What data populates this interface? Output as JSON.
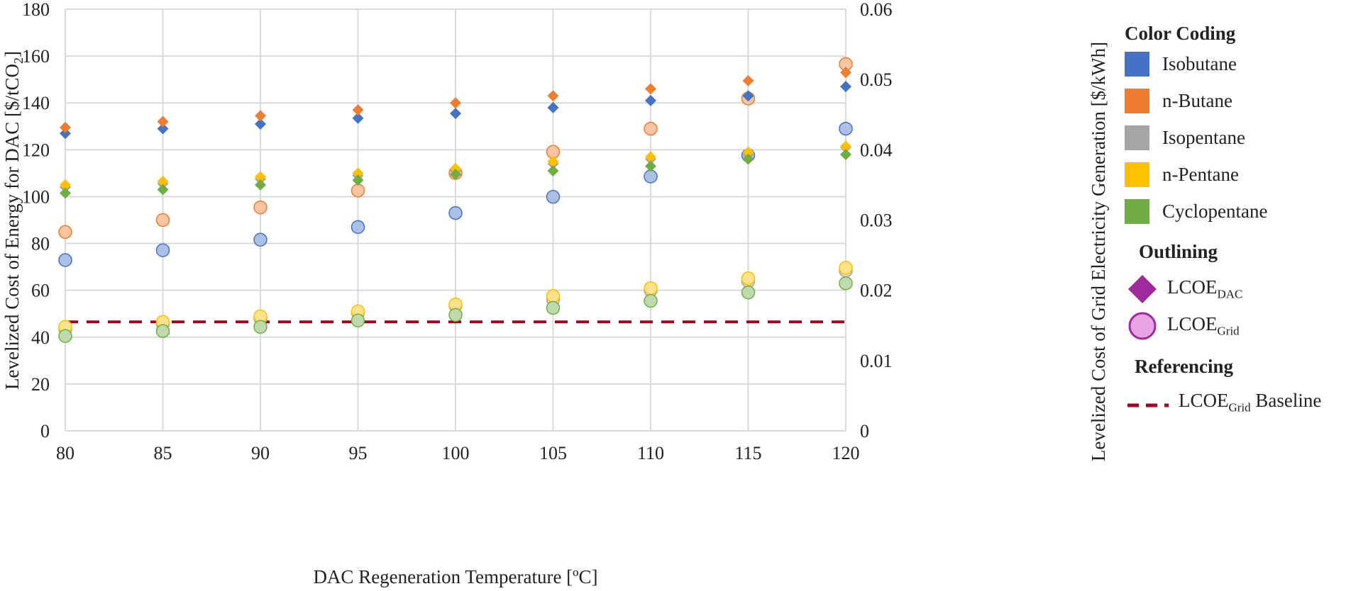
{
  "chart_data": {
    "type": "scatter",
    "title": "",
    "xlabel": "DAC Regeneration Temperature [ºC]",
    "ylabel_left": {
      "prefix": "Levelized Cost of Energy for DAC [$/tCO",
      "sub": "2",
      "suffix": "]"
    },
    "ylabel_right": "Levelized Cost of Grid Electricity Generation [$/kWh]",
    "x": [
      80,
      85,
      90,
      95,
      100,
      105,
      110,
      115,
      120
    ],
    "xlim": [
      80,
      120
    ],
    "x_ticks": [
      "80",
      "85",
      "90",
      "95",
      "100",
      "105",
      "110",
      "115",
      "120"
    ],
    "ylim_left": [
      0,
      180
    ],
    "y_ticks_left": [
      "0",
      "20",
      "40",
      "60",
      "80",
      "100",
      "120",
      "140",
      "160",
      "180"
    ],
    "ylim_right": [
      0,
      0.06
    ],
    "y_ticks_right": [
      "0",
      "0.01",
      "0.02",
      "0.03",
      "0.04",
      "0.05",
      "0.06"
    ],
    "grid": "vertical and horizontal",
    "legend_position": "right",
    "series": [
      {
        "name": "Isobutane",
        "color": "#4472C4",
        "lcoe_dac": [
          127,
          129,
          131,
          133.5,
          135.5,
          138,
          141,
          143,
          147
        ],
        "lcoe_grid": [
          0.0243,
          0.0257,
          0.0272,
          0.029,
          0.031,
          0.0333,
          0.0362,
          0.0392,
          0.043
        ]
      },
      {
        "name": "n-Butane",
        "color": "#ED7D31",
        "lcoe_dac": [
          129.5,
          132,
          134.5,
          137,
          140,
          143,
          146,
          149.5,
          153
        ],
        "lcoe_grid": [
          0.0283,
          0.03,
          0.0318,
          0.0342,
          0.0367,
          0.0397,
          0.043,
          0.0473,
          0.0522
        ]
      },
      {
        "name": "Isopentane",
        "color": "#A5A5A5",
        "lcoe_dac": [
          104,
          105.5,
          107.5,
          109,
          111,
          114,
          116,
          118,
          121
        ],
        "lcoe_grid": [
          0.0145,
          0.0152,
          0.016,
          0.0168,
          0.0178,
          0.0187,
          0.02,
          0.0213,
          0.0228
        ]
      },
      {
        "name": "n-Pentane",
        "color": "#FFC000",
        "lcoe_dac": [
          105,
          106.5,
          108.5,
          110,
          112,
          115,
          117,
          119,
          121.5
        ],
        "lcoe_grid": [
          0.0148,
          0.0155,
          0.0163,
          0.017,
          0.018,
          0.0192,
          0.0203,
          0.0217,
          0.0232
        ]
      },
      {
        "name": "Cyclopentane",
        "color": "#70AD47",
        "lcoe_dac": [
          101.5,
          103,
          105,
          107,
          109.5,
          111,
          113,
          116,
          118
        ],
        "lcoe_grid": [
          0.0135,
          0.0142,
          0.0148,
          0.0157,
          0.0165,
          0.0175,
          0.0185,
          0.0197,
          0.021
        ]
      }
    ],
    "baseline": {
      "value": 0.0155,
      "color": "#A50021"
    }
  },
  "legend": {
    "heading_colors": "Color Coding",
    "heading_outline": "Outlining",
    "heading_reference": "Referencing",
    "outline_fill_diamond": "#9E2A9C",
    "outline_fill_circle": "#E8A3E2",
    "dac_label": {
      "main": "LCOE",
      "sub": "DAC"
    },
    "grid_label": {
      "main": "LCOE",
      "sub": "Grid"
    },
    "baseline_label": {
      "main": "LCOE",
      "sub": "Grid",
      "suffix": " Baseline"
    }
  }
}
